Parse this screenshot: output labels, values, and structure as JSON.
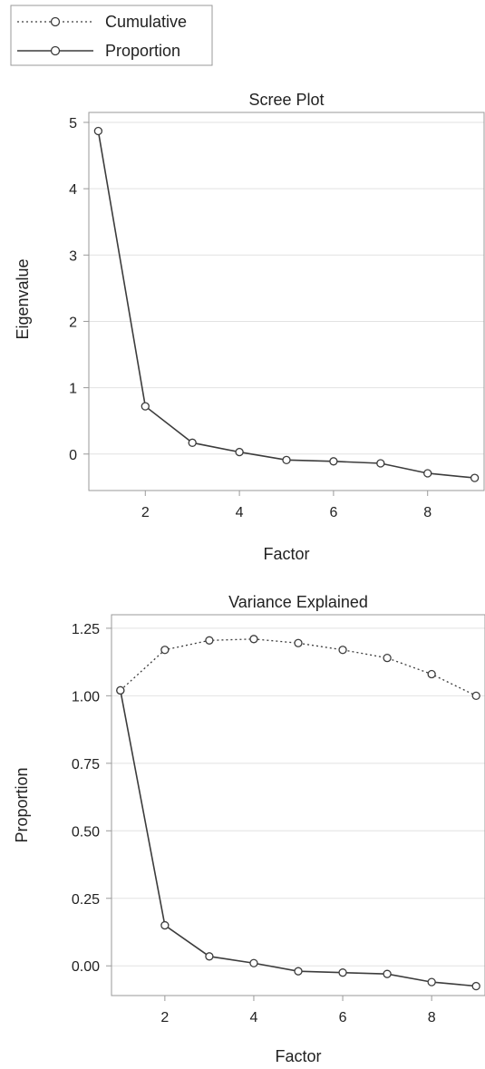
{
  "legend": {
    "entries": [
      {
        "label": "Cumulative",
        "style": "dotted"
      },
      {
        "label": "Proportion",
        "style": "solid"
      }
    ]
  },
  "colors": {
    "line": "#3c3c3c",
    "grid": "#e2e2e2",
    "frame": "#9a9a9a"
  },
  "chart_data": [
    {
      "type": "line",
      "title": "Scree Plot",
      "xlabel": "Factor",
      "ylabel": "Eigenvalue",
      "x": [
        1,
        2,
        3,
        4,
        5,
        6,
        7,
        8,
        9
      ],
      "xticks": [
        2,
        4,
        6,
        8
      ],
      "xtick_labels": [
        "2",
        "4",
        "6",
        "8"
      ],
      "xlim": [
        0.8,
        9.2
      ],
      "yticks": [
        0,
        1,
        2,
        3,
        4,
        5
      ],
      "ytick_labels": [
        "0",
        "1",
        "2",
        "3",
        "4",
        "5"
      ],
      "ylim": [
        -0.55,
        5.15
      ],
      "grid": "horizontal",
      "series": [
        {
          "style": "solid",
          "values": [
            4.87,
            0.72,
            0.17,
            0.03,
            -0.09,
            -0.11,
            -0.14,
            -0.29,
            -0.36
          ]
        }
      ]
    },
    {
      "type": "line",
      "title": "Variance Explained",
      "xlabel": "Factor",
      "ylabel": "Proportion",
      "x": [
        1,
        2,
        3,
        4,
        5,
        6,
        7,
        8,
        9
      ],
      "xticks": [
        2,
        4,
        6,
        8
      ],
      "xtick_labels": [
        "2",
        "4",
        "6",
        "8"
      ],
      "xlim": [
        0.8,
        9.2
      ],
      "yticks": [
        0,
        0.25,
        0.5,
        0.75,
        1.0,
        1.25
      ],
      "ytick_labels": [
        "0.00",
        "0.25",
        "0.50",
        "0.75",
        "1.00",
        "1.25"
      ],
      "ylim": [
        -0.11,
        1.3
      ],
      "grid": "horizontal",
      "legend": "top-left",
      "series": [
        {
          "name": "Cumulative",
          "style": "dotted",
          "values": [
            1.02,
            1.17,
            1.205,
            1.21,
            1.195,
            1.17,
            1.14,
            1.08,
            1.0
          ]
        },
        {
          "name": "Proportion",
          "style": "solid",
          "values": [
            1.02,
            0.15,
            0.035,
            0.01,
            -0.02,
            -0.025,
            -0.03,
            -0.06,
            -0.075
          ]
        }
      ]
    }
  ]
}
